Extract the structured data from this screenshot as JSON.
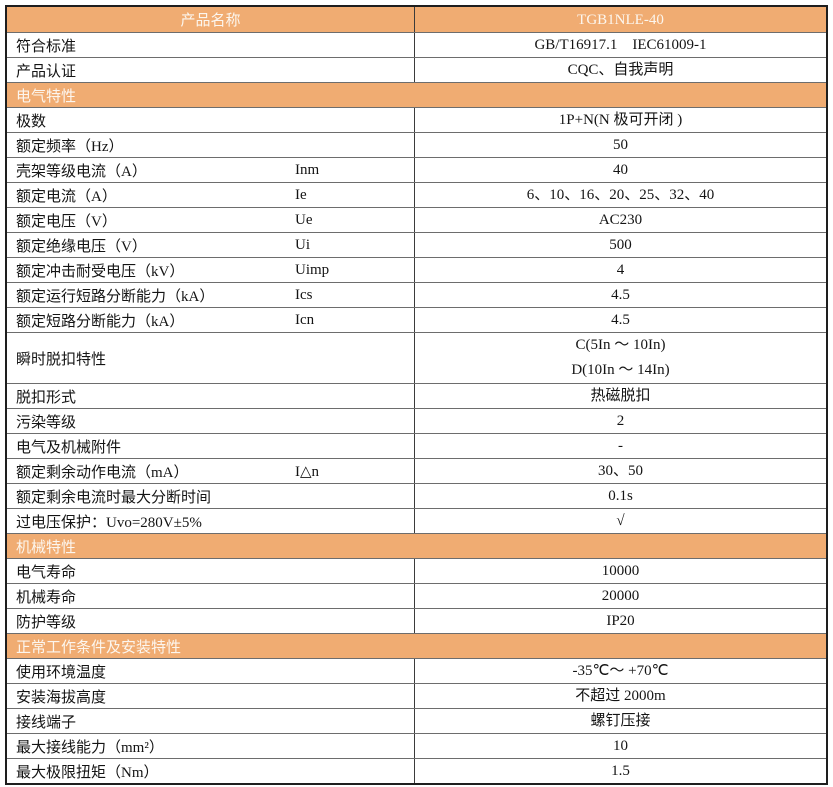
{
  "colors": {
    "accent_orange": "#F0AC72",
    "header_text": "#FCF6EE",
    "outer_border": "#1e1e1e",
    "grid_line": "#6d6d6d"
  },
  "table": {
    "rows": [
      {
        "type": "product",
        "label": "产品名称",
        "value": "TGB1NLE-40"
      },
      {
        "type": "data",
        "label": "符合标准",
        "value": "GB/T16917.1    IEC61009-1"
      },
      {
        "type": "data",
        "label": "产品认证",
        "value": "CQC、自我声明"
      },
      {
        "type": "section",
        "label": "电气特性"
      },
      {
        "type": "data",
        "label": "极数",
        "value": "1P+N(N 极可开闭 )"
      },
      {
        "type": "data",
        "label": "额定频率（Hz）",
        "value": "50"
      },
      {
        "type": "data",
        "label": "壳架等级电流（A）",
        "symbol": "Inm",
        "value": "40"
      },
      {
        "type": "data",
        "label": "额定电流（A）",
        "symbol": "Ie",
        "value": "6、10、16、20、25、32、40"
      },
      {
        "type": "data",
        "label": "额定电压（V）",
        "symbol": "Ue",
        "value": "AC230"
      },
      {
        "type": "data",
        "label": "额定绝缘电压（V）",
        "symbol": "Ui",
        "value": "500"
      },
      {
        "type": "data",
        "label": "额定冲击耐受电压（kV）",
        "symbol": "Uimp",
        "value": "4"
      },
      {
        "type": "data",
        "label": "额定运行短路分断能力（kA）",
        "symbol": "Ics",
        "value": "4.5"
      },
      {
        "type": "data",
        "label": "额定短路分断能力（kA）",
        "symbol": "Icn",
        "value": "4.5"
      },
      {
        "type": "data",
        "label": "瞬时脱扣特性",
        "lines": [
          "C(5In ～ 10In)",
          "D(10In ～ 14In)"
        ]
      },
      {
        "type": "data",
        "label": "脱扣形式",
        "value": "热磁脱扣"
      },
      {
        "type": "data",
        "label": "污染等级",
        "value": "2"
      },
      {
        "type": "data",
        "label": "电气及机械附件",
        "value": "-"
      },
      {
        "type": "data",
        "label": "额定剩余动作电流（mA）",
        "symbol": "I△n",
        "value": "30、50"
      },
      {
        "type": "data",
        "label": "额定剩余电流时最大分断时间",
        "value": "0.1s"
      },
      {
        "type": "data",
        "label": "过电压保护：Uvo=280V±5%",
        "value": "√"
      },
      {
        "type": "section",
        "label": "机械特性"
      },
      {
        "type": "data",
        "label": "电气寿命",
        "value": "10000"
      },
      {
        "type": "data",
        "label": "机械寿命",
        "value": "20000"
      },
      {
        "type": "data",
        "label": "防护等级",
        "value": "IP20"
      },
      {
        "type": "section",
        "label": "正常工作条件及安装特性"
      },
      {
        "type": "data",
        "label": "使用环境温度",
        "value": "-35℃～ +70℃"
      },
      {
        "type": "data",
        "label": "安装海拔高度",
        "value": "不超过 2000m"
      },
      {
        "type": "data",
        "label": "接线端子",
        "value": "螺钉压接"
      },
      {
        "type": "data",
        "label": "最大接线能力（mm²）",
        "value": "10"
      },
      {
        "type": "data",
        "label": "最大极限扭矩（Nm）",
        "value": "1.5"
      }
    ]
  }
}
